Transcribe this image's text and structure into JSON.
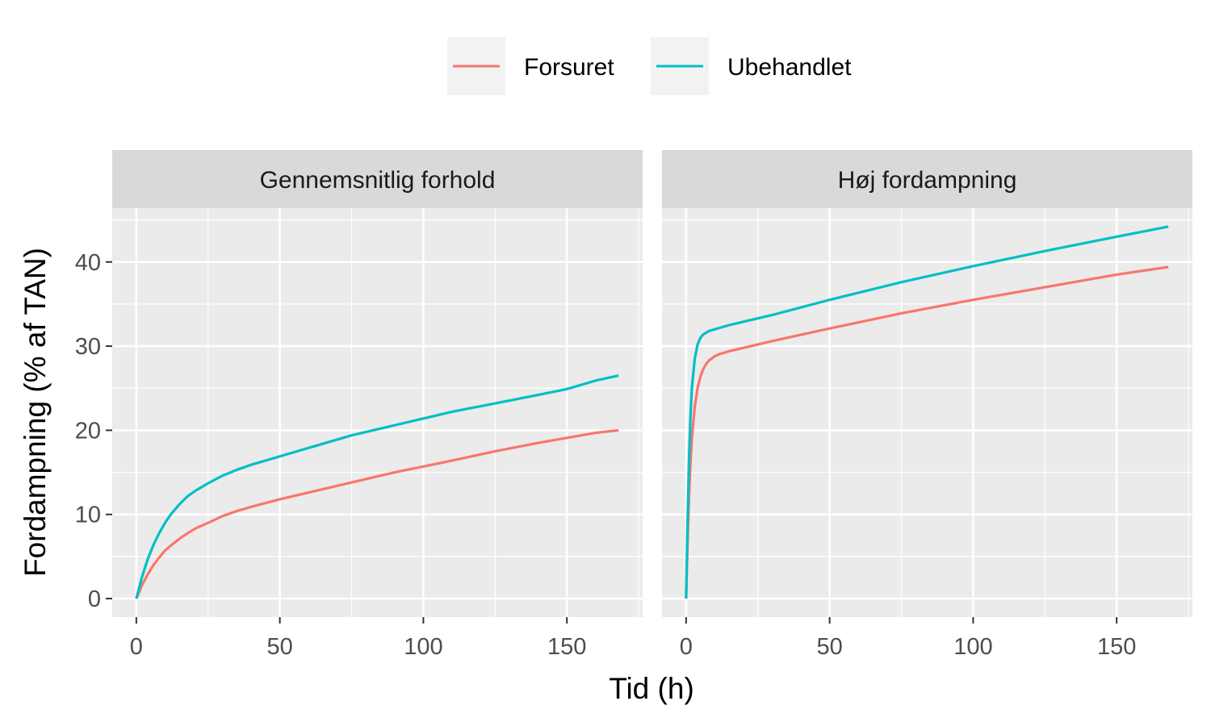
{
  "chart_data": {
    "type": "line",
    "xlabel": "Tid (h)",
    "ylabel": "Fordampning (% af TAN)",
    "xlim": [
      -8.4,
      176.4
    ],
    "ylim": [
      -2.2,
      46.4
    ],
    "x_ticks": [
      0,
      50,
      100,
      150
    ],
    "y_ticks": [
      0,
      10,
      20,
      30,
      40
    ],
    "grid": true,
    "legend_position": "top",
    "legend": [
      {
        "name": "Forsuret",
        "color": "#F8766D"
      },
      {
        "name": "Ubehandlet",
        "color": "#00BFC4"
      }
    ],
    "facets": [
      {
        "title": "Gennemsnitlig forhold",
        "series": [
          {
            "name": "Forsuret",
            "color": "#F8766D",
            "x": [
              0,
              2,
              4,
              6,
              8,
              10,
              12,
              15,
              18,
              21,
              25,
              30,
              35,
              40,
              50,
              60,
              75,
              90,
              100,
              110,
              125,
              140,
              150,
              160,
              168
            ],
            "y": [
              0,
              1.6,
              2.9,
              4.0,
              4.9,
              5.7,
              6.3,
              7.1,
              7.8,
              8.4,
              9.0,
              9.8,
              10.4,
              10.9,
              11.8,
              12.6,
              13.8,
              15.0,
              15.7,
              16.4,
              17.5,
              18.5,
              19.1,
              19.7,
              20.0
            ]
          },
          {
            "name": "Ubehandlet",
            "color": "#00BFC4",
            "x": [
              0,
              2,
              4,
              6,
              8,
              10,
              12,
              15,
              18,
              21,
              25,
              30,
              35,
              40,
              50,
              60,
              75,
              90,
              100,
              110,
              125,
              140,
              150,
              160,
              168
            ],
            "y": [
              0,
              2.6,
              4.7,
              6.4,
              7.8,
              9.0,
              10.0,
              11.2,
              12.2,
              12.9,
              13.7,
              14.6,
              15.3,
              15.9,
              16.9,
              17.9,
              19.4,
              20.6,
              21.4,
              22.2,
              23.2,
              24.2,
              24.9,
              25.9,
              26.5
            ]
          }
        ]
      },
      {
        "title": "Høj fordampning",
        "series": [
          {
            "name": "Forsuret",
            "color": "#F8766D",
            "x": [
              0,
              0.5,
              1,
              1.5,
              2,
              3,
              4,
              5,
              6,
              7,
              8,
              10,
              12,
              15,
              20,
              30,
              50,
              75,
              100,
              125,
              150,
              168
            ],
            "y": [
              0,
              6.5,
              12.0,
              16.0,
              19.0,
              22.8,
              25.0,
              26.4,
              27.3,
              27.9,
              28.3,
              28.8,
              29.1,
              29.4,
              29.8,
              30.6,
              32.1,
              33.9,
              35.5,
              37.0,
              38.5,
              39.4
            ]
          },
          {
            "name": "Ubehandlet",
            "color": "#00BFC4",
            "x": [
              0,
              0.5,
              1,
              1.5,
              2,
              3,
              4,
              5,
              6,
              7,
              8,
              10,
              12,
              15,
              20,
              30,
              50,
              75,
              100,
              125,
              150,
              168
            ],
            "y": [
              0,
              9.0,
              16.5,
              21.5,
              25.0,
              28.5,
              30.2,
              31.0,
              31.4,
              31.6,
              31.8,
              32.0,
              32.2,
              32.5,
              32.9,
              33.7,
              35.5,
              37.6,
              39.5,
              41.3,
              43.0,
              44.2
            ]
          }
        ]
      }
    ]
  }
}
